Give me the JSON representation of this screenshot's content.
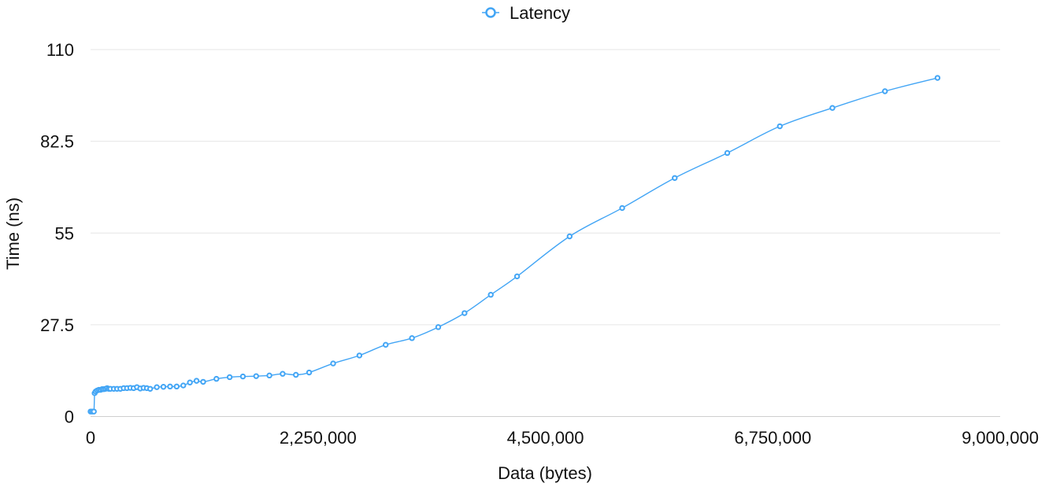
{
  "chart_data": {
    "type": "line",
    "title": "",
    "xlabel": "Data (bytes)",
    "ylabel": "Time (ns)",
    "xlim": [
      0,
      9000000
    ],
    "ylim": [
      0,
      110
    ],
    "x_ticks": [
      0,
      2250000,
      4500000,
      6750000,
      9000000
    ],
    "x_tick_labels": [
      "0",
      "2,250,000",
      "4,500,000",
      "6,750,000",
      "9,000,000"
    ],
    "y_ticks": [
      0,
      27.5,
      55,
      82.5,
      110
    ],
    "y_tick_labels": [
      "0",
      "27.5",
      "55",
      "82.5",
      "110"
    ],
    "grid": true,
    "legend_position": "top-center",
    "colors": {
      "series": "#42a5f5"
    },
    "series": [
      {
        "name": "Latency",
        "points": [
          [
            0,
            1.5
          ],
          [
            16384,
            1.5
          ],
          [
            32768,
            1.5
          ],
          [
            40000,
            7.0
          ],
          [
            50000,
            7.5
          ],
          [
            65536,
            7.8
          ],
          [
            81920,
            8.0
          ],
          [
            98304,
            8.0
          ],
          [
            114688,
            8.2
          ],
          [
            131072,
            8.2
          ],
          [
            147456,
            8.3
          ],
          [
            163840,
            8.5
          ],
          [
            180224,
            8.3
          ],
          [
            196608,
            8.3
          ],
          [
            229376,
            8.3
          ],
          [
            262144,
            8.3
          ],
          [
            294912,
            8.3
          ],
          [
            327680,
            8.5
          ],
          [
            360448,
            8.5
          ],
          [
            393216,
            8.6
          ],
          [
            425984,
            8.5
          ],
          [
            458752,
            8.8
          ],
          [
            491520,
            8.4
          ],
          [
            524288,
            8.6
          ],
          [
            557056,
            8.5
          ],
          [
            589824,
            8.3
          ],
          [
            655360,
            8.8
          ],
          [
            720896,
            8.9
          ],
          [
            786432,
            9.0
          ],
          [
            851968,
            9.0
          ],
          [
            917504,
            9.3
          ],
          [
            983040,
            10.2
          ],
          [
            1048576,
            10.7
          ],
          [
            1114112,
            10.4
          ],
          [
            1245184,
            11.3
          ],
          [
            1376256,
            11.8
          ],
          [
            1507328,
            12.0
          ],
          [
            1638400,
            12.1
          ],
          [
            1769472,
            12.3
          ],
          [
            1900544,
            12.8
          ],
          [
            2031616,
            12.5
          ],
          [
            2162688,
            13.2
          ],
          [
            2400000,
            15.9
          ],
          [
            2660000,
            18.3
          ],
          [
            2920000,
            21.5
          ],
          [
            3180000,
            23.5
          ],
          [
            3440000,
            26.8
          ],
          [
            3700000,
            31.0
          ],
          [
            3960000,
            36.5
          ],
          [
            4220000,
            42.0
          ],
          [
            4740000,
            54.0
          ],
          [
            5260000,
            62.5
          ],
          [
            5780000,
            71.5
          ],
          [
            6300000,
            79.0
          ],
          [
            6820000,
            87.0
          ],
          [
            7340000,
            92.5
          ],
          [
            7860000,
            97.5
          ],
          [
            8380000,
            101.5
          ]
        ]
      }
    ]
  }
}
